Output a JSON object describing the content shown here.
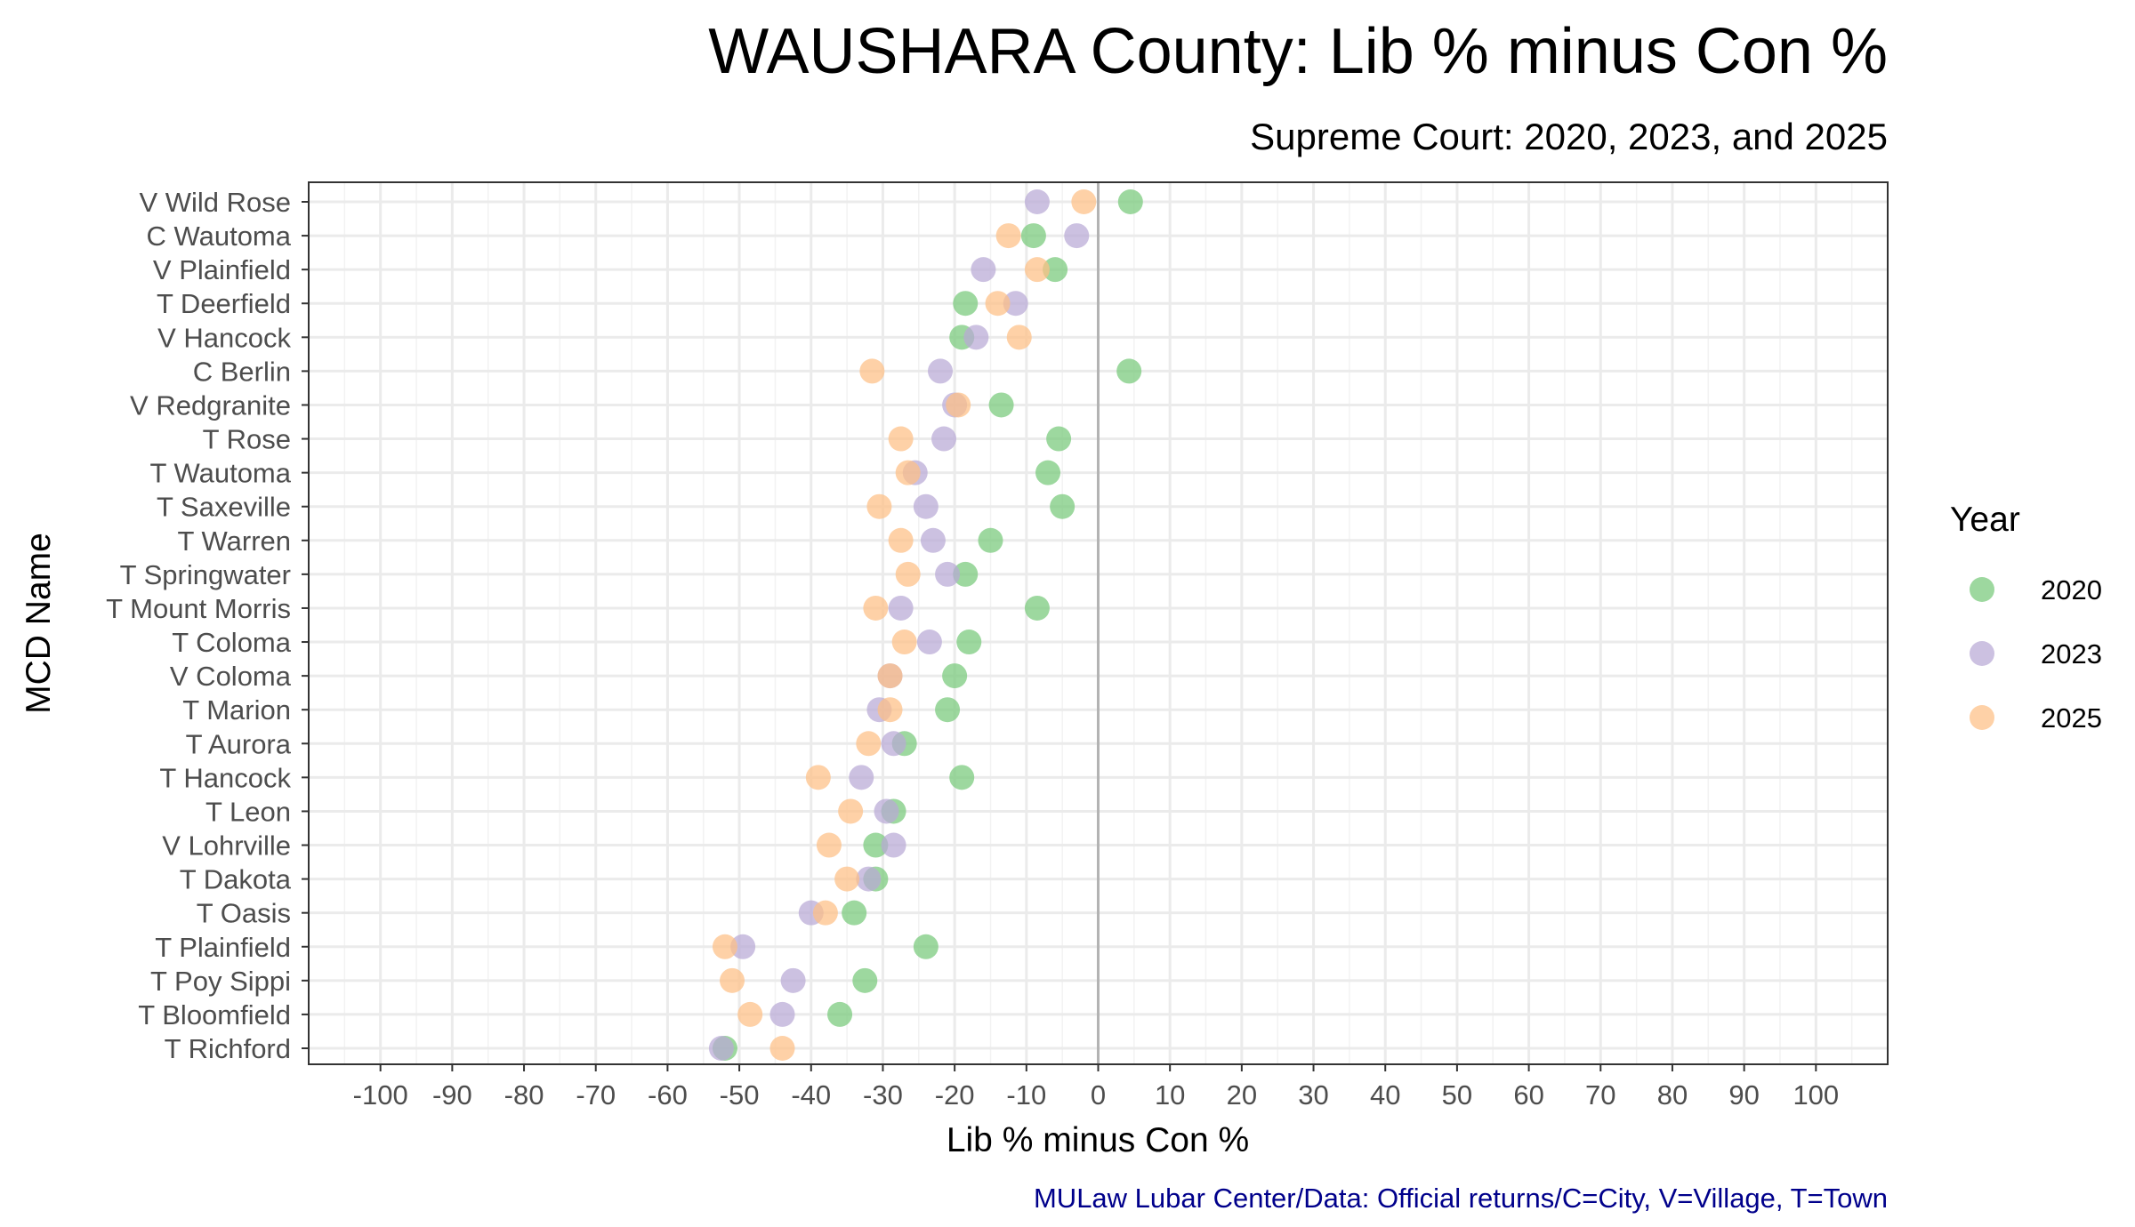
{
  "chart_data": {
    "type": "scatter",
    "title": "WAUSHARA County: Lib % minus Con %",
    "subtitle": "Supreme Court: 2020, 2023, and 2025",
    "xlabel": "Lib % minus Con %",
    "ylabel": "MCD Name",
    "xlim": [
      -110,
      110
    ],
    "xticks": [
      -100,
      -90,
      -80,
      -70,
      -60,
      -50,
      -40,
      -30,
      -20,
      -10,
      0,
      10,
      20,
      30,
      40,
      50,
      60,
      70,
      80,
      90,
      100
    ],
    "xtick_labels": [
      "-100",
      "-90",
      "-80",
      "-70",
      "-60",
      "-50",
      "-40",
      "-30",
      "-20",
      "-10",
      "0",
      "10",
      "20",
      "30",
      "40",
      "50",
      "60",
      "70",
      "80",
      "90",
      "100"
    ],
    "grid": true,
    "reference_line_x": 0,
    "legend": {
      "title": "Year",
      "position": "right"
    },
    "caption": "MULaw Lubar Center/Data: Official returns/C=City, V=Village, T=Town",
    "categories": [
      "V Wild Rose",
      "C Wautoma",
      "V Plainfield",
      "T Deerfield",
      "V Hancock",
      "C Berlin",
      "V Redgranite",
      "T Rose",
      "T Wautoma",
      "T Saxeville",
      "T Warren",
      "T Springwater",
      "T Mount Morris",
      "T Coloma",
      "V Coloma",
      "T Marion",
      "T Aurora",
      "T Hancock",
      "T Leon",
      "V Lohrville",
      "T Dakota",
      "T Oasis",
      "T Plainfield",
      "T Poy Sippi",
      "T Bloomfield",
      "T Richford"
    ],
    "series": [
      {
        "name": "2020",
        "color": "#77c97a",
        "values": [
          4.5,
          -9,
          -6,
          -18.5,
          -19,
          4.3,
          -13.5,
          -5.5,
          -7,
          -5,
          -15,
          -18.5,
          -8.5,
          -18,
          -20,
          -21,
          -27,
          -19,
          -28.5,
          -31,
          -31,
          -34,
          -24,
          -32.5,
          -36,
          -52
        ]
      },
      {
        "name": "2023",
        "color": "#b9a9d6",
        "values": [
          -8.5,
          -3,
          -16,
          -11.5,
          -17,
          -22,
          -20,
          -21.5,
          -25.5,
          -24,
          -23,
          -21,
          -27.5,
          -23.5,
          -29,
          -30.5,
          -28.5,
          -33,
          -29.5,
          -28.5,
          -32,
          -40,
          -49.5,
          -42.5,
          -44,
          -52.5
        ]
      },
      {
        "name": "2025",
        "color": "#fdbf85",
        "values": [
          -2,
          -12.5,
          -8.5,
          -14,
          -11,
          -31.5,
          -19.5,
          -27.5,
          -26.5,
          -30.5,
          -27.5,
          -26.5,
          -31,
          -27,
          -29,
          -29,
          -32,
          -39,
          -34.5,
          -37.5,
          -35,
          -38,
          -52,
          -51,
          -48.5,
          -44
        ]
      }
    ]
  }
}
